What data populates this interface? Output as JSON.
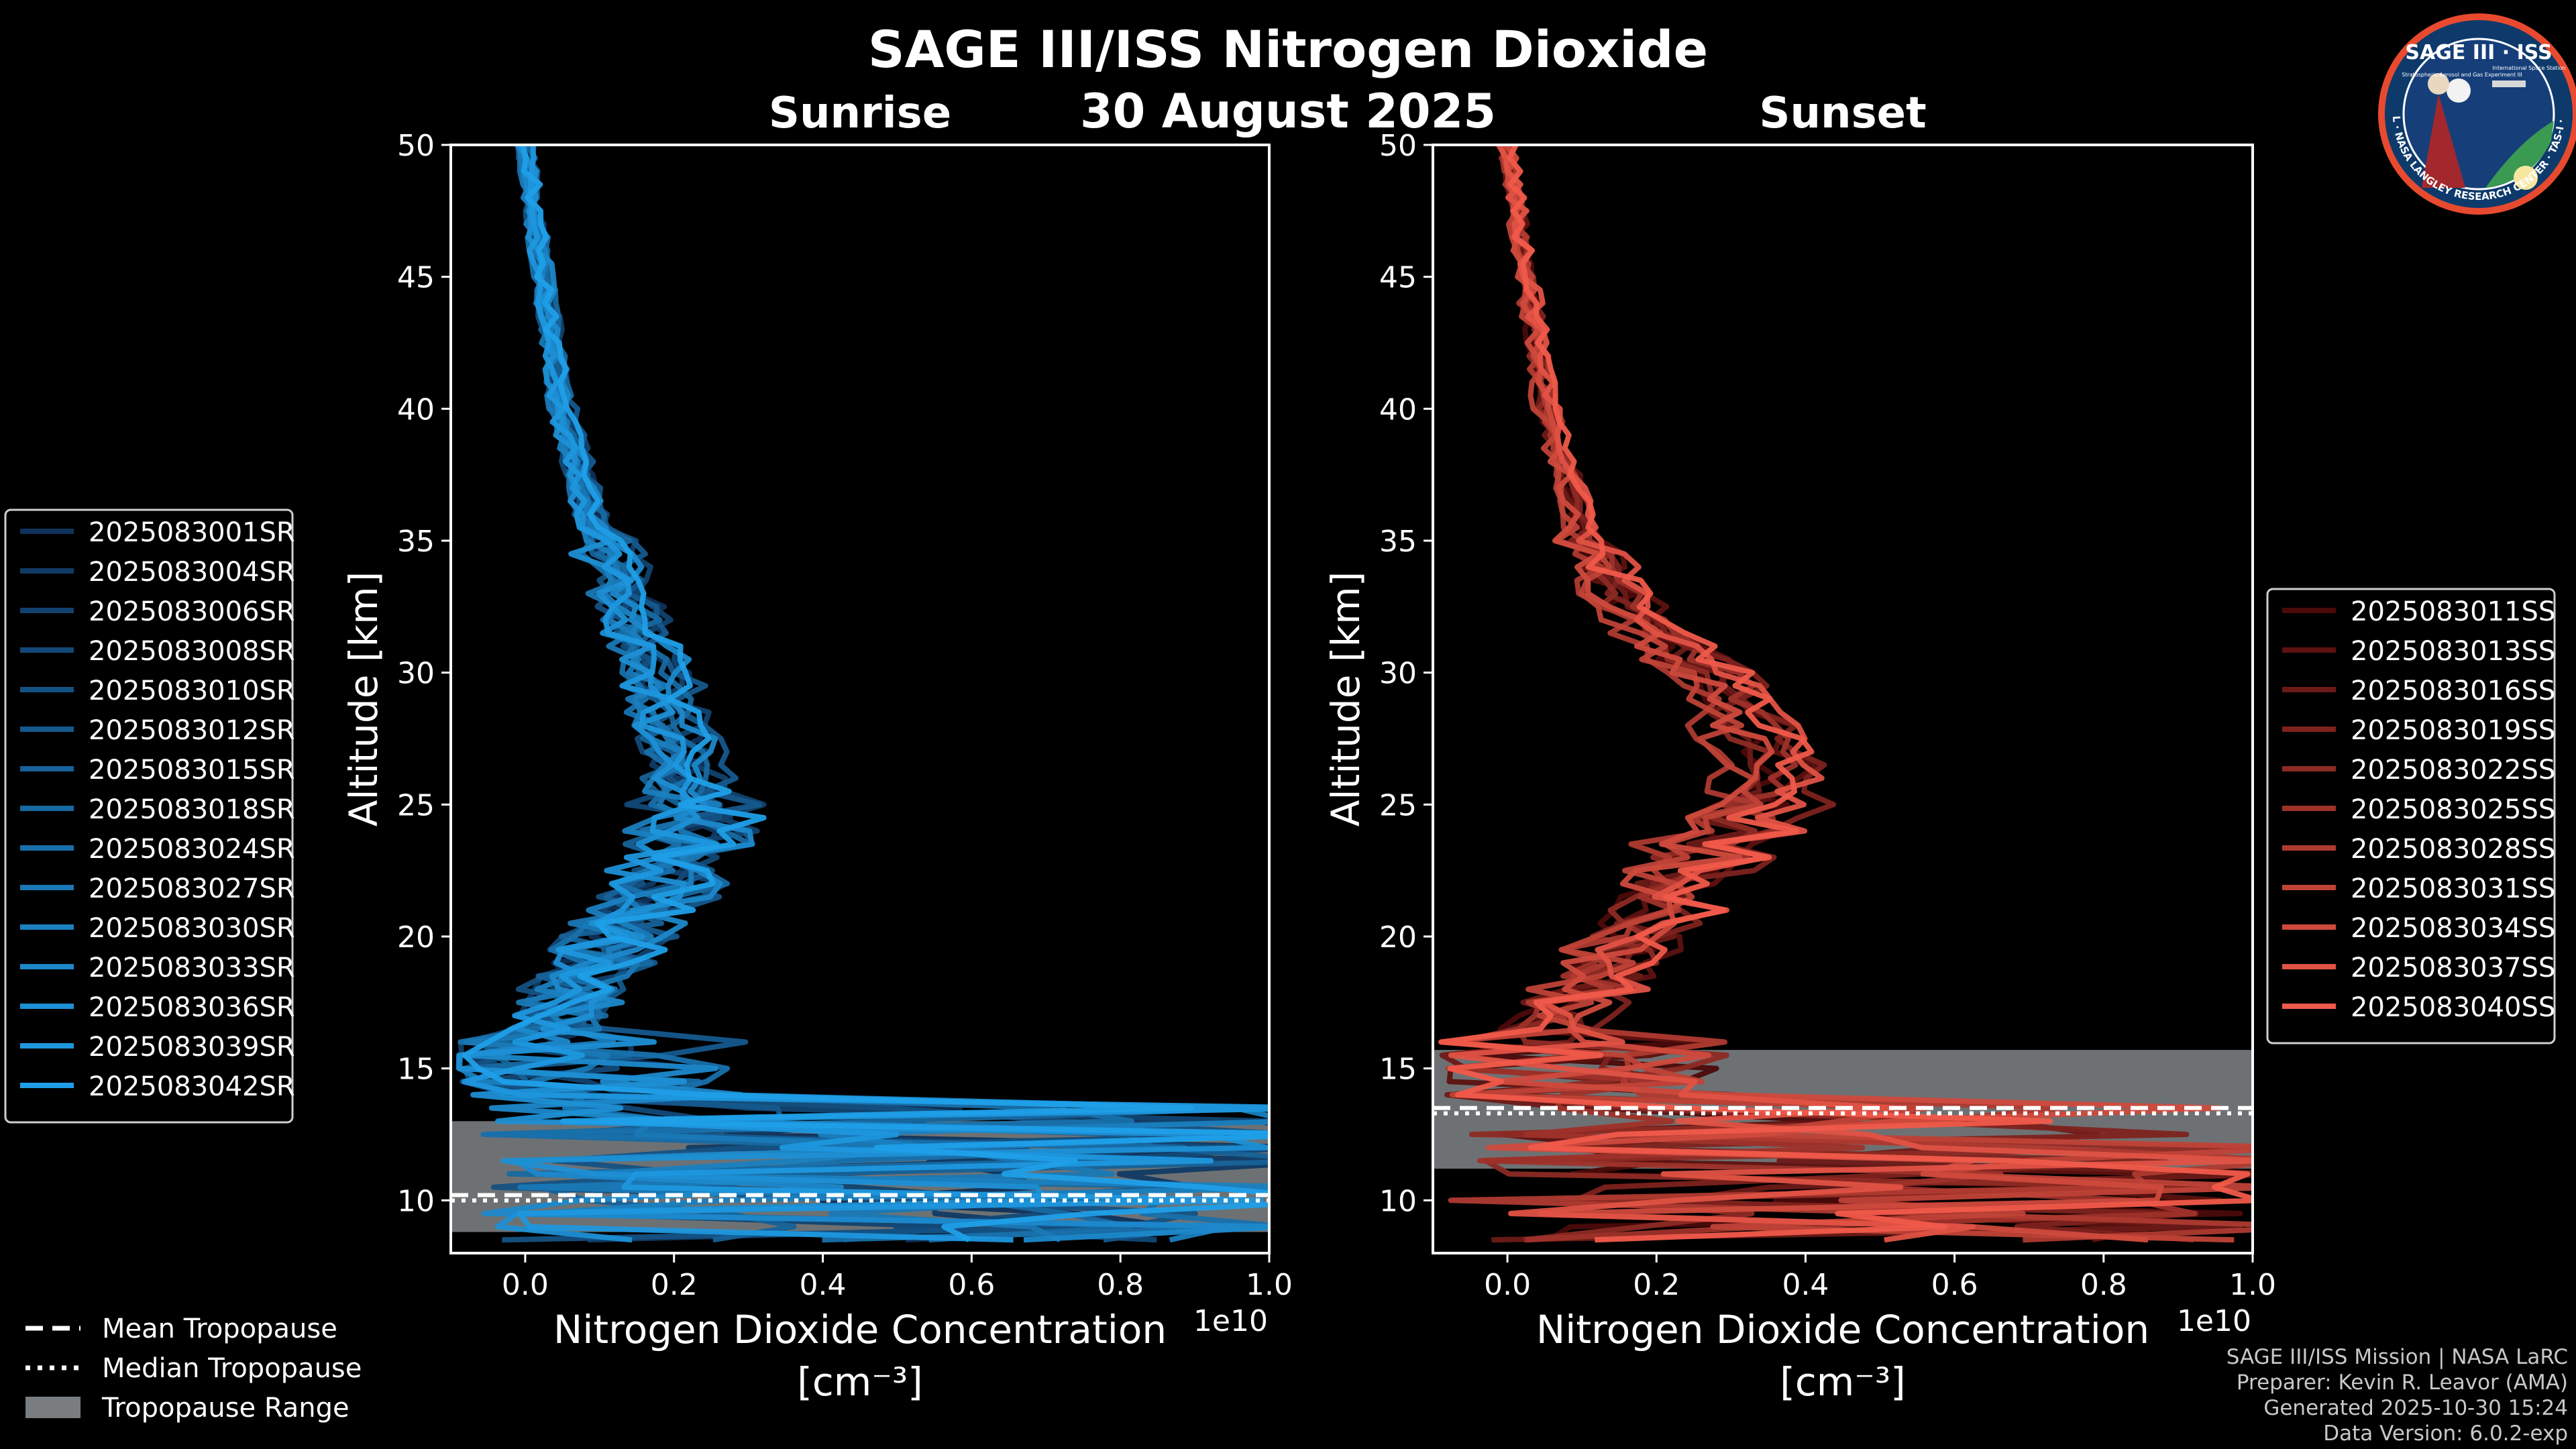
{
  "title": "SAGE III/ISS Nitrogen Dioxide",
  "date": "30 August 2025",
  "logo": {
    "name": "SAGE III · ISS",
    "subtitle": "Stratospheric Aerosol and Gas Experiment III",
    "subtitle2": "International Space Station",
    "ring_text": "BALL · NASA LANGLEY RESEARCH CENTER · TAS-I · ESA"
  },
  "footer": {
    "mission": "SAGE III/ISS Mission | NASA LaRC",
    "preparer": "Preparer: Kevin R. Leavor (AMA)",
    "generated": "Generated 2025-10-30 15:24",
    "version": "Data Version: 6.0.2-exp"
  },
  "colors": {
    "sunrise": "#1f9fe8",
    "sunset": "#f05a4a",
    "background": "#000000",
    "tropopause_range": "#7a7d80"
  },
  "tropopause_legend": {
    "mean": "Mean Tropopause",
    "median": "Median Tropopause",
    "range": "Tropopause Range"
  },
  "chart_data": [
    {
      "type": "line",
      "panel": "sunrise",
      "subtitle": "Sunrise",
      "xlabel": "Nitrogen Dioxide Concentration",
      "xunit": "[cm⁻³]",
      "ylabel": "Altitude [km]",
      "x_scale_note": "1e10",
      "xlim": [
        -0.1,
        1.0
      ],
      "ylim": [
        8,
        50
      ],
      "xticks": [
        "0.0",
        "0.2",
        "0.4",
        "0.6",
        "0.8",
        "1.0"
      ],
      "yticks": [
        "10",
        "15",
        "20",
        "25",
        "30",
        "35",
        "40",
        "45",
        "50"
      ],
      "grid": false,
      "legend_position": "left",
      "series_names": [
        "2025083001SR",
        "2025083004SR",
        "2025083006SR",
        "2025083008SR",
        "2025083010SR",
        "2025083012SR",
        "2025083015SR",
        "2025083018SR",
        "2025083024SR",
        "2025083027SR",
        "2025083030SR",
        "2025083033SR",
        "2025083036SR",
        "2025083039SR",
        "2025083042SR"
      ],
      "mean_profile_1e10": {
        "altitude_km": [
          9,
          10,
          11,
          12,
          13,
          14,
          15,
          16,
          17,
          18,
          19,
          20,
          21,
          22,
          23,
          24,
          25,
          26,
          27,
          28,
          29,
          30,
          31,
          32,
          33,
          34,
          35,
          36,
          37,
          38,
          39,
          40,
          41,
          42,
          43,
          44,
          45,
          46,
          47,
          48,
          49,
          50
        ],
        "no2": [
          0.5,
          0.45,
          0.4,
          0.3,
          0.2,
          0.12,
          0.05,
          0.04,
          0.05,
          0.07,
          0.1,
          0.13,
          0.16,
          0.19,
          0.22,
          0.23,
          0.23,
          0.22,
          0.21,
          0.2,
          0.19,
          0.18,
          0.165,
          0.15,
          0.135,
          0.12,
          0.105,
          0.09,
          0.08,
          0.07,
          0.06,
          0.05,
          0.045,
          0.04,
          0.035,
          0.03,
          0.025,
          0.02,
          0.015,
          0.01,
          0.005,
          0.0
        ]
      },
      "tropopause": {
        "mean_km": 10.2,
        "median_km": 10.2,
        "range_km": [
          8.8,
          13.0
        ]
      }
    },
    {
      "type": "line",
      "panel": "sunset",
      "subtitle": "Sunset",
      "xlabel": "Nitrogen Dioxide Concentration",
      "xunit": "[cm⁻³]",
      "ylabel": "Altitude [km]",
      "x_scale_note": "1e10",
      "xlim": [
        -0.1,
        1.0
      ],
      "ylim": [
        8,
        50
      ],
      "xticks": [
        "0.0",
        "0.2",
        "0.4",
        "0.6",
        "0.8",
        "1.0"
      ],
      "yticks": [
        "10",
        "15",
        "20",
        "25",
        "30",
        "35",
        "40",
        "45",
        "50"
      ],
      "grid": false,
      "legend_position": "right",
      "series_names": [
        "2025083011SS",
        "2025083013SS",
        "2025083016SS",
        "2025083019SS",
        "2025083022SS",
        "2025083025SS",
        "2025083028SS",
        "2025083031SS",
        "2025083034SS",
        "2025083037SS",
        "2025083040SS"
      ],
      "mean_profile_1e10": {
        "altitude_km": [
          9,
          10,
          11,
          12,
          13,
          14,
          15,
          16,
          17,
          18,
          19,
          20,
          21,
          22,
          23,
          24,
          25,
          26,
          27,
          28,
          29,
          30,
          31,
          32,
          33,
          34,
          35,
          36,
          37,
          38,
          39,
          40,
          41,
          42,
          43,
          44,
          45,
          46,
          47,
          48,
          49,
          50
        ],
        "no2": [
          0.6,
          0.5,
          0.4,
          0.25,
          0.12,
          0.06,
          0.04,
          0.05,
          0.07,
          0.1,
          0.13,
          0.16,
          0.19,
          0.22,
          0.25,
          0.28,
          0.31,
          0.33,
          0.33,
          0.31,
          0.28,
          0.25,
          0.21,
          0.17,
          0.14,
          0.12,
          0.1,
          0.09,
          0.08,
          0.07,
          0.06,
          0.05,
          0.045,
          0.04,
          0.035,
          0.03,
          0.025,
          0.02,
          0.015,
          0.01,
          0.005,
          0.0
        ]
      },
      "tropopause": {
        "mean_km": 13.5,
        "median_km": 13.5,
        "range_km": [
          11.2,
          15.7
        ]
      }
    }
  ]
}
